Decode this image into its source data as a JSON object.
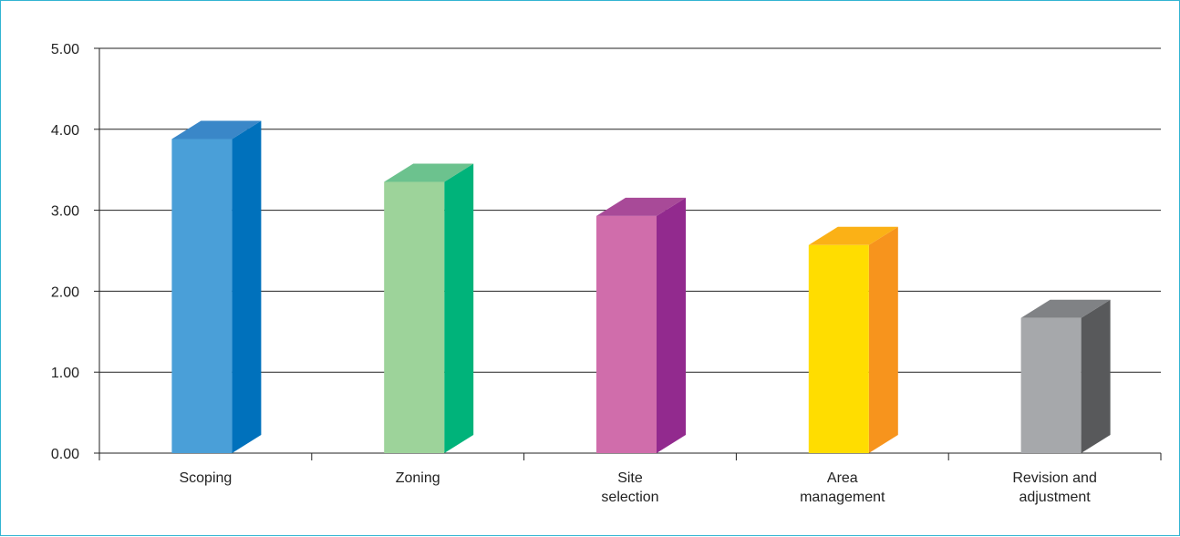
{
  "chart_data": {
    "type": "bar",
    "style": "3d-column",
    "title": "",
    "xlabel": "",
    "ylabel": "",
    "ylim": [
      0,
      5
    ],
    "yticks": [
      "0.00",
      "1.00",
      "2.00",
      "3.00",
      "4.00",
      "5.00"
    ],
    "grid": true,
    "legend": "none",
    "categories": [
      [
        "Scoping"
      ],
      [
        "Zoning"
      ],
      [
        "Site",
        "selection"
      ],
      [
        "Area",
        "management"
      ],
      [
        "Revision and",
        "adjustment"
      ]
    ],
    "values": [
      3.88,
      3.35,
      2.93,
      2.57,
      1.67
    ],
    "colors": [
      {
        "front": "#4a9fd8",
        "side": "#0071bc",
        "top": "#3a87c8"
      },
      {
        "front": "#9dd39a",
        "side": "#00b37a",
        "top": "#6cc28e"
      },
      {
        "front": "#d06dab",
        "side": "#922a8e",
        "top": "#a84a98"
      },
      {
        "front": "#ffdd00",
        "side": "#f7941d",
        "top": "#fbb116"
      },
      {
        "front": "#a6a8ab",
        "side": "#58595b",
        "top": "#808285"
      }
    ]
  }
}
